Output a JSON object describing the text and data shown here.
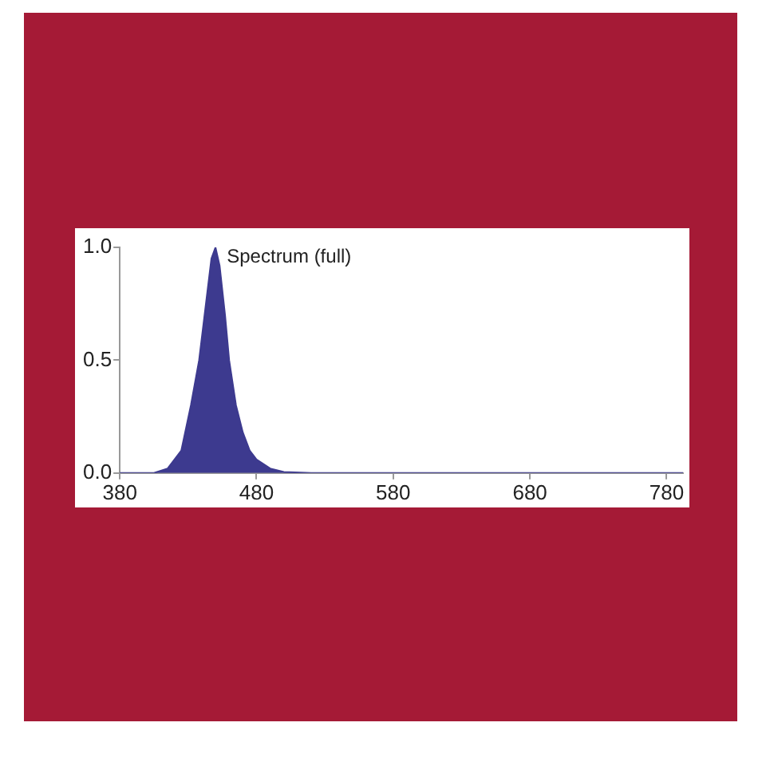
{
  "chart_data": {
    "type": "area",
    "title": "Spectrum (full)",
    "x": [
      380,
      405,
      415,
      425,
      432,
      438,
      443,
      447,
      450,
      453,
      457,
      460,
      465,
      470,
      475,
      480,
      490,
      500,
      520,
      600,
      700,
      792
    ],
    "series": [
      {
        "color": "#3d3a8f",
        "values": [
          0,
          0,
          0.02,
          0.1,
          0.3,
          0.5,
          0.75,
          0.95,
          1.0,
          0.92,
          0.7,
          0.5,
          0.3,
          0.18,
          0.1,
          0.06,
          0.02,
          0.005,
          0,
          0,
          0,
          0
        ]
      }
    ],
    "xlim": [
      380,
      792
    ],
    "xticks": [
      380,
      480,
      580,
      680,
      780
    ],
    "ylim": [
      0,
      1
    ],
    "yticks": [
      {
        "value": 0,
        "label": "0.0"
      },
      {
        "value": 0.5,
        "label": "0.5"
      },
      {
        "value": 1,
        "label": "1.0"
      }
    ],
    "grid": false,
    "legend": false
  }
}
